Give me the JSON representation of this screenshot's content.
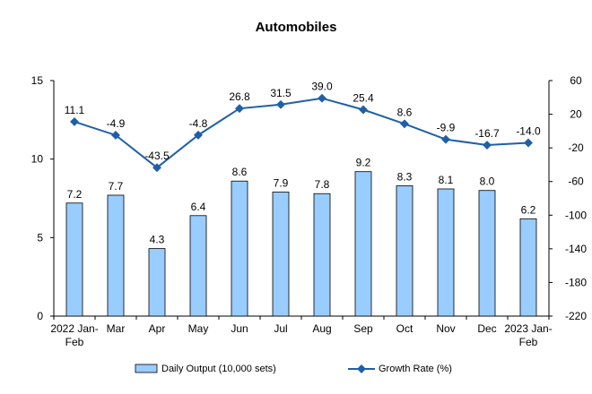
{
  "chart_data": {
    "type": "bar",
    "title": "Automobiles",
    "categories": [
      [
        "2022 Jan-",
        "Feb"
      ],
      [
        "Mar"
      ],
      [
        "Apr"
      ],
      [
        "May"
      ],
      [
        "Jun"
      ],
      [
        "Jul"
      ],
      [
        "Aug"
      ],
      [
        "Sep"
      ],
      [
        "Oct"
      ],
      [
        "Nov"
      ],
      [
        "Dec"
      ],
      [
        "2023 Jan-",
        "Feb"
      ]
    ],
    "series": [
      {
        "name": "Daily Output (10,000 sets)",
        "type": "bar",
        "axis": "left",
        "color": "#99ccff",
        "values": [
          7.2,
          7.7,
          4.3,
          6.4,
          8.6,
          7.9,
          7.8,
          9.2,
          8.3,
          8.1,
          8.0,
          6.2
        ],
        "labels": [
          "7.2",
          "7.7",
          "4.3",
          "6.4",
          "8.6",
          "7.9",
          "7.8",
          "9.2",
          "8.3",
          "8.1",
          "8.0",
          "6.2"
        ]
      },
      {
        "name": "Growth Rate (%)",
        "type": "line",
        "axis": "right",
        "color": "#1f5fa8",
        "values": [
          11.1,
          -4.9,
          -43.5,
          -4.8,
          26.8,
          31.5,
          39.0,
          25.4,
          8.6,
          -9.9,
          -16.7,
          -14.0
        ],
        "labels": [
          "11.1",
          "-4.9",
          "-43.5",
          "-4.8",
          "26.8",
          "31.5",
          "39.0",
          "25.4",
          "8.6",
          "-9.9",
          "-16.7",
          "-14.0"
        ]
      }
    ],
    "y_left": {
      "min": 0,
      "max": 15,
      "ticks": [
        "0",
        "5",
        "10",
        "15"
      ]
    },
    "y_right": {
      "min": -220,
      "max": 60,
      "ticks": [
        "60",
        "20",
        "-20",
        "-60",
        "-100",
        "-140",
        "-180",
        "-220"
      ]
    },
    "legend": "bottom"
  }
}
